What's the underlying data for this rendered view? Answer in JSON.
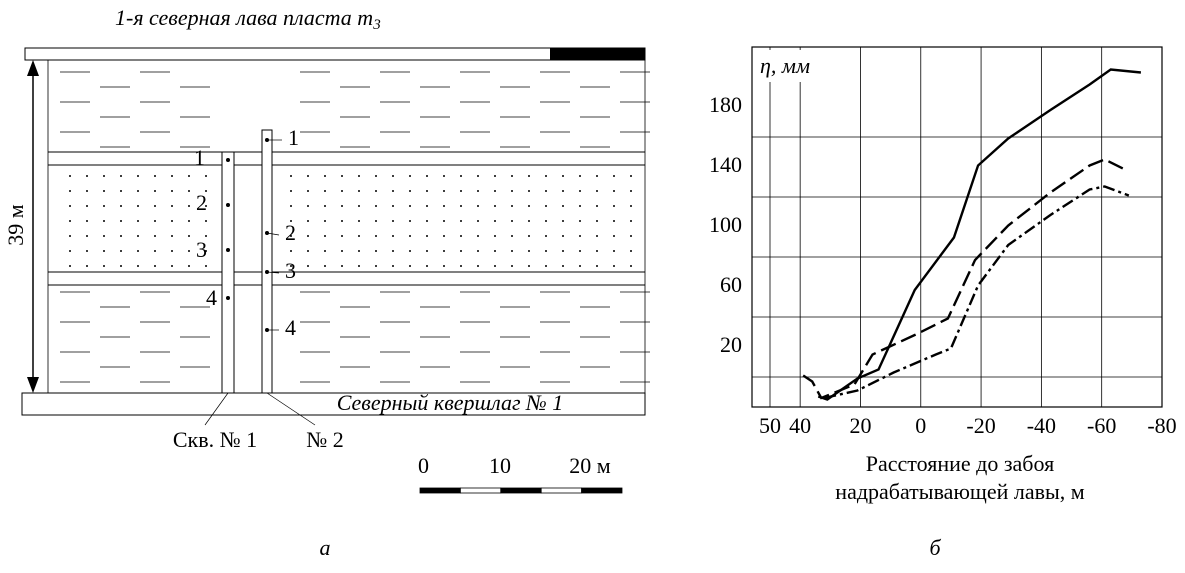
{
  "diagram": {
    "title": "1-я северная лава пласта ",
    "seam": "m",
    "seam_index": "3",
    "height_label": "39 м",
    "crosscut": "Северный квершлаг № 1",
    "borehole_1": {
      "label": "Скв. № 1",
      "points": [
        "1",
        "2",
        "3",
        "4"
      ]
    },
    "borehole_2": {
      "label": "№ 2",
      "points": [
        "1",
        "2",
        "3",
        "4"
      ]
    },
    "scale": [
      "0",
      "10",
      "20 м"
    ],
    "panel": "а"
  },
  "chart_data": {
    "type": "line",
    "panel": "б",
    "y_label": "η, мм",
    "x_label": [
      "Расстояние до забоя",
      "надрабатывающей лавы, м"
    ],
    "xlim": [
      50,
      -80
    ],
    "xticks": [
      50,
      40,
      20,
      0,
      -20,
      -40,
      -60,
      -80
    ],
    "ylim": [
      0,
      240
    ],
    "yticks": [
      20,
      60,
      100,
      140,
      180
    ],
    "grid": true,
    "series": [
      {
        "color": "#000000",
        "dash": "solid",
        "x": [
          34,
          31,
          21,
          14,
          2,
          -11,
          -19,
          -29,
          -43,
          -56,
          -63,
          -73
        ],
        "values": [
          7,
          5,
          19,
          25,
          78,
          113,
          161,
          179,
          198,
          215,
          225,
          223
        ]
      },
      {
        "color": "#000000",
        "dash": "dashed",
        "x": [
          39,
          36,
          33,
          22,
          16,
          2,
          -9,
          -18,
          -29,
          -43,
          -56,
          -61,
          -68
        ],
        "values": [
          21,
          17,
          6,
          15,
          35,
          48,
          59,
          98,
          121,
          143,
          161,
          165,
          158
        ]
      },
      {
        "color": "#000000",
        "dash": "dashdot",
        "x": [
          32,
          21,
          9,
          -5,
          -10,
          -19,
          -29,
          -43,
          -56,
          -61,
          -69
        ],
        "values": [
          6,
          11,
          23,
          35,
          39,
          81,
          108,
          128,
          145,
          147,
          141
        ]
      }
    ]
  }
}
